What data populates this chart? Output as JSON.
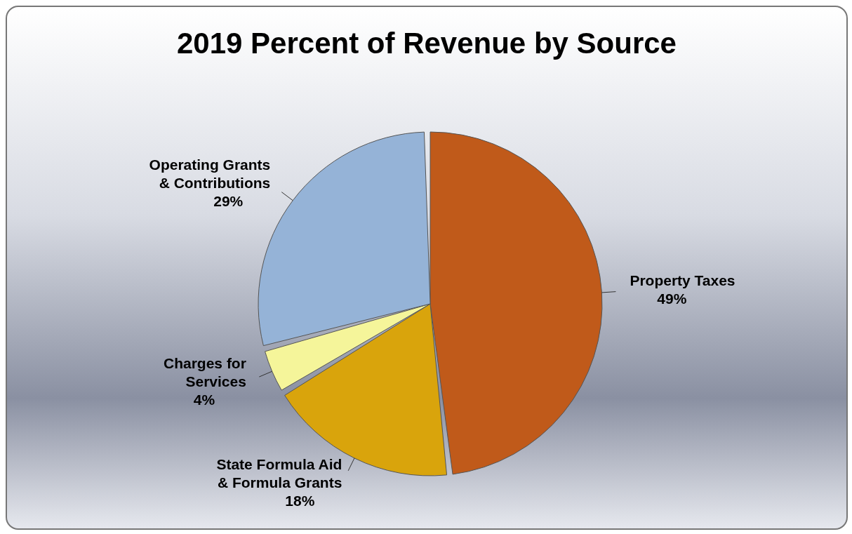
{
  "chart_data": {
    "type": "pie",
    "title": "2019 Percent of Revenue by Source",
    "categories": [
      "Property Taxes",
      "State Formula Aid & Formula Grants",
      "Charges for Services",
      "Operating Grants & Contributions"
    ],
    "values": [
      49,
      18,
      4,
      29
    ],
    "value_labels": [
      "49%",
      "18%",
      "4%",
      "29%"
    ],
    "colors": [
      "#c05a1a",
      "#d9a40c",
      "#f5f59a",
      "#95b3d7"
    ],
    "legend": false
  }
}
